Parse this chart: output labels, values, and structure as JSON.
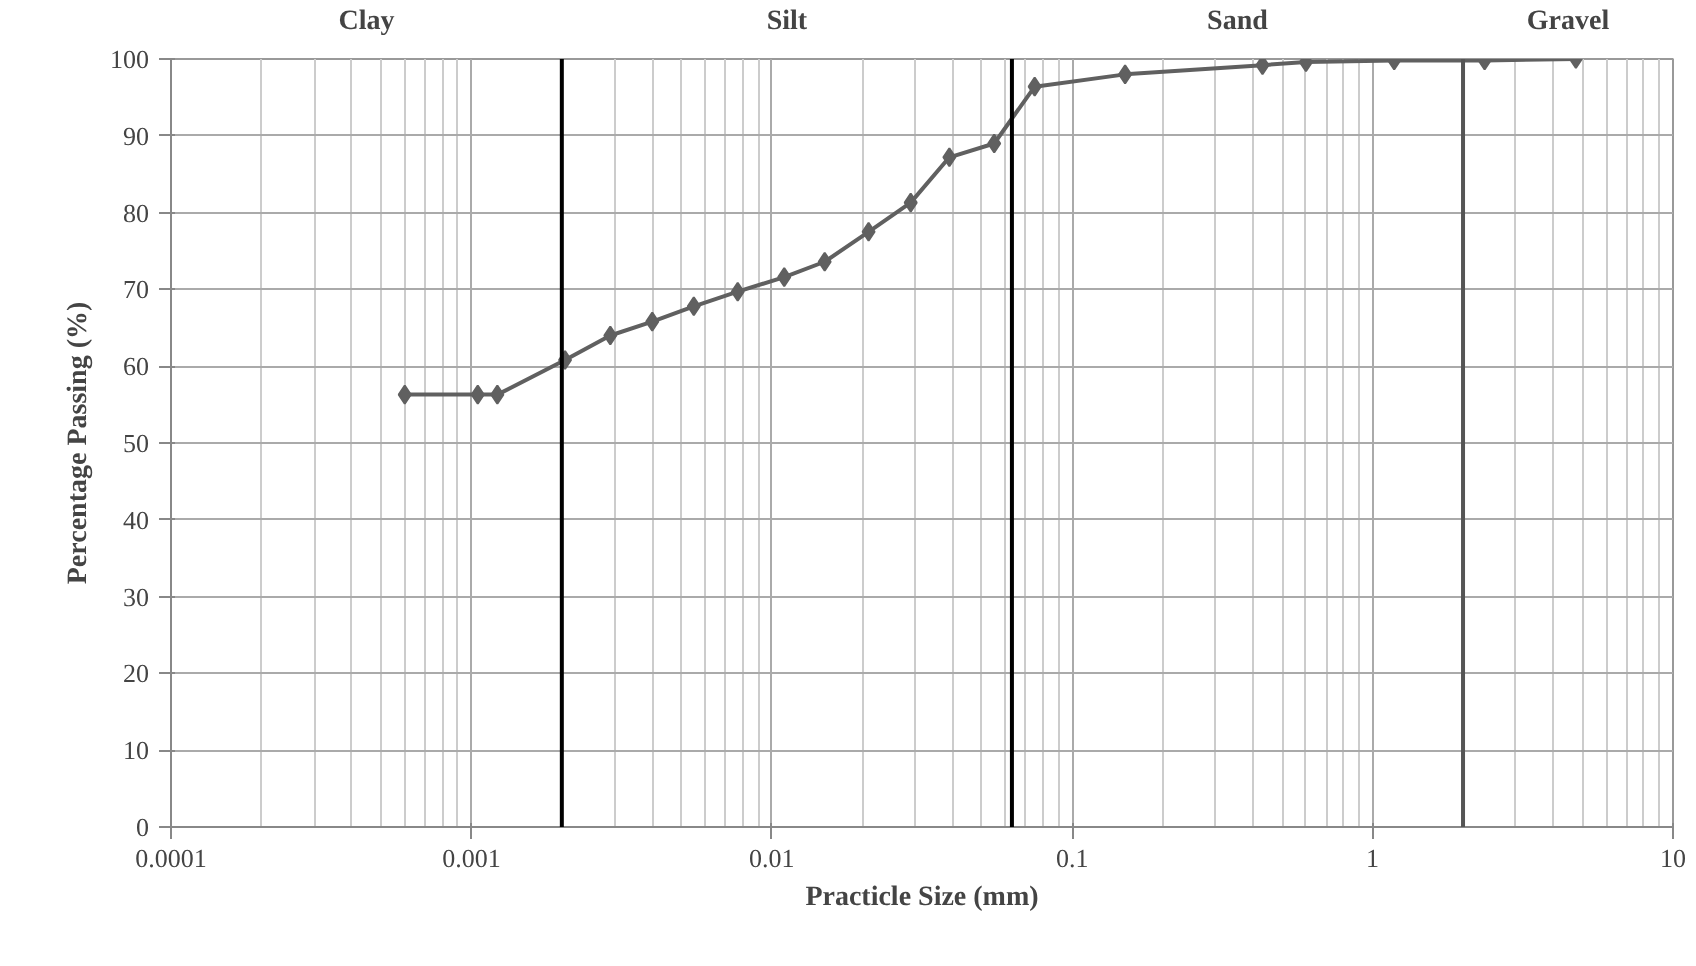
{
  "chart_data": {
    "type": "line",
    "xlabel": "Practicle Size (mm)",
    "ylabel": "Percentage Passing (%)",
    "x": [
      0.0006,
      0.00105,
      0.00122,
      0.00205,
      0.0029,
      0.004,
      0.0055,
      0.0077,
      0.011,
      0.015,
      0.021,
      0.029,
      0.039,
      0.055,
      0.075,
      0.15,
      0.43,
      0.6,
      1.18,
      2.36,
      4.75
    ],
    "series": [
      {
        "color": "#606060",
        "values": [
          56.3,
          56.3,
          56.3,
          60.8,
          64,
          65.8,
          67.8,
          69.7,
          71.6,
          73.6,
          77.5,
          81.3,
          87.2,
          89,
          96.4,
          98,
          99.2,
          99.6,
          99.8,
          99.8,
          100
        ]
      }
    ],
    "log": "x",
    "xlim": [
      0.0001,
      10
    ],
    "ylim": [
      0,
      100
    ],
    "xticks": [
      {
        "value": 0.0001,
        "label": "0.0001"
      },
      {
        "value": 0.001,
        "label": "0.001"
      },
      {
        "value": 0.01,
        "label": "0.01"
      },
      {
        "value": 0.1,
        "label": "0.1"
      },
      {
        "value": 1,
        "label": "1"
      },
      {
        "value": 10,
        "label": "10"
      }
    ],
    "yticks": [
      0,
      10,
      20,
      30,
      40,
      50,
      60,
      70,
      80,
      90,
      100
    ],
    "grid": true,
    "marker": "diamond",
    "line_style": "solid",
    "ref_lines": [
      {
        "axis": "x",
        "value": 0.002,
        "color": "#000000"
      },
      {
        "axis": "x",
        "value": 0.063,
        "color": "#000000"
      },
      {
        "axis": "x",
        "value": 2,
        "color": "#555555"
      }
    ],
    "annotations": [
      "Clay",
      "Silt",
      "Sand",
      "Gravel"
    ]
  }
}
